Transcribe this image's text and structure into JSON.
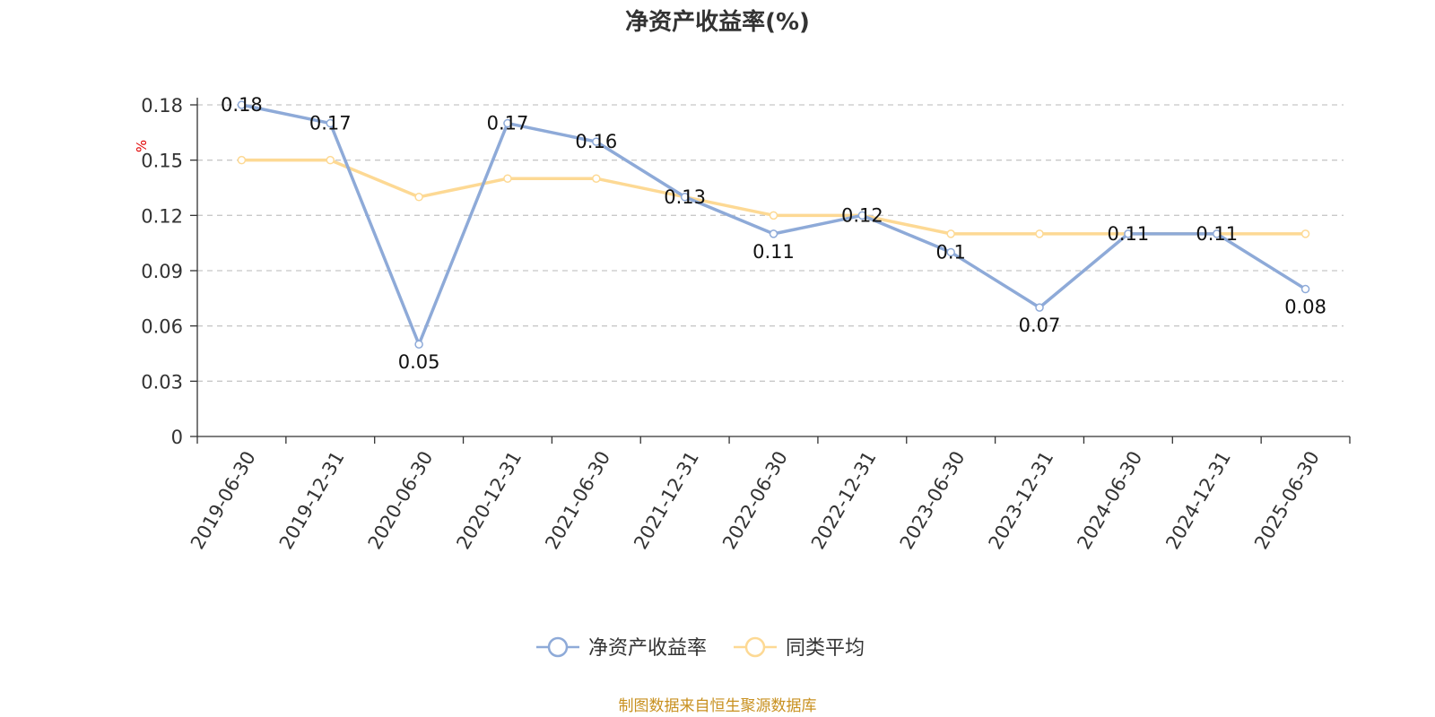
{
  "chart_data": {
    "type": "line",
    "title": "净资产收益率(%)",
    "ylabel": "%",
    "xlabel": "",
    "categories": [
      "2019-06-30",
      "2019-12-31",
      "2020-06-30",
      "2020-12-31",
      "2021-06-30",
      "2021-12-31",
      "2022-06-30",
      "2022-12-31",
      "2023-06-30",
      "2023-12-31",
      "2024-06-30",
      "2024-12-31",
      "2025-06-30"
    ],
    "series": [
      {
        "name": "净资产收益率",
        "color": "#8eaad8",
        "values": [
          0.18,
          0.17,
          0.05,
          0.17,
          0.16,
          0.13,
          0.11,
          0.12,
          0.1,
          0.07,
          0.11,
          0.11,
          0.08
        ],
        "labels": true
      },
      {
        "name": "同类平均",
        "color": "#fdd994",
        "values": [
          0.15,
          0.15,
          0.13,
          0.14,
          0.14,
          0.13,
          0.12,
          0.12,
          0.11,
          0.11,
          0.11,
          0.11,
          0.11
        ],
        "labels": false
      }
    ],
    "ylim": [
      0,
      0.18
    ],
    "yticks": [
      "0",
      "0.03",
      "0.06",
      "0.09",
      "0.12",
      "0.15",
      "0.18"
    ],
    "grid": true,
    "legend_position": "bottom"
  },
  "source_text": "制图数据来自恒生聚源数据库",
  "source_color": "#c8901f"
}
